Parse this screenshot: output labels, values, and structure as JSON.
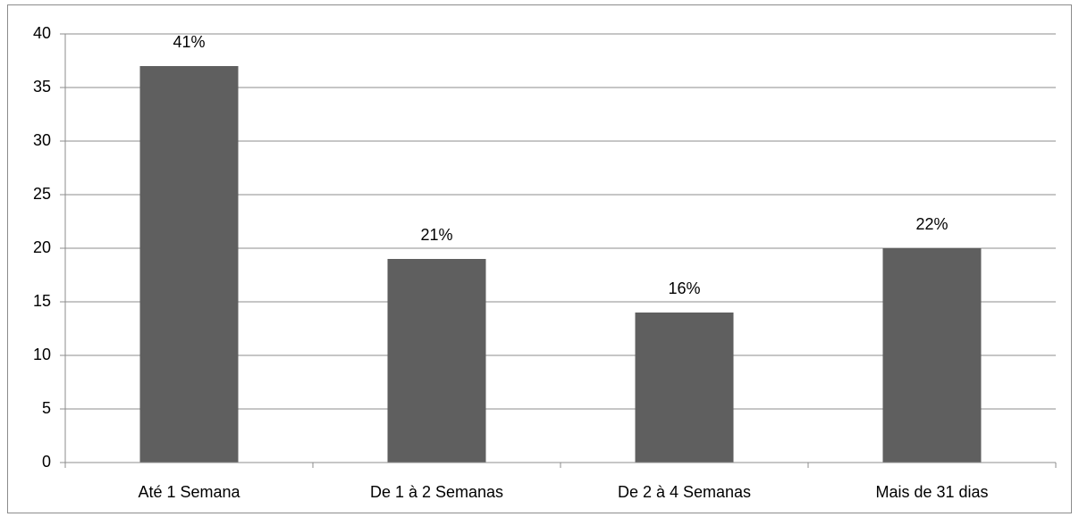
{
  "chart_data": {
    "type": "bar",
    "categories": [
      "Até 1 Semana",
      "De 1 à 2 Semanas",
      "De 2 à 4 Semanas",
      "Mais de 31 dias"
    ],
    "values": [
      37,
      19,
      14,
      20
    ],
    "annotations": [
      "41%",
      "21%",
      "16%",
      "22%"
    ],
    "color": "#5f5f5f",
    "ylim": [
      0,
      40
    ],
    "yticks": [
      0,
      5,
      10,
      15,
      20,
      25,
      30,
      35,
      40
    ],
    "grid": true
  }
}
